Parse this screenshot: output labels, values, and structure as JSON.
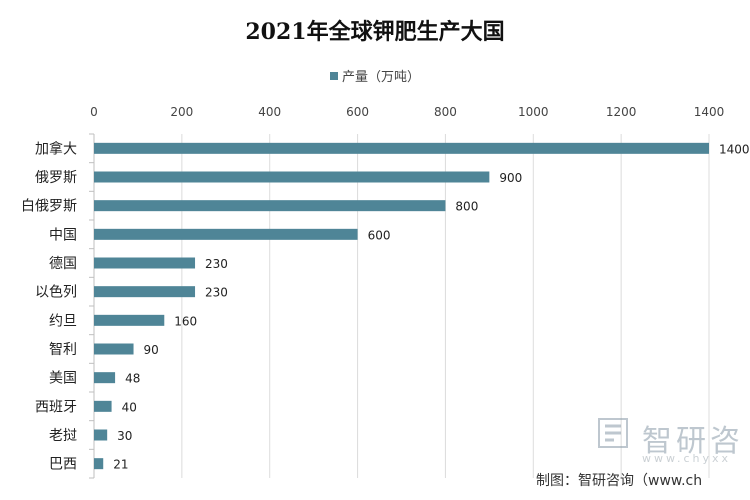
{
  "chart_data": {
    "type": "bar",
    "orientation": "horizontal",
    "title": "2021年全球钾肥生产大国",
    "categories": [
      "加拿大",
      "俄罗斯",
      "白俄罗斯",
      "中国",
      "德国",
      "以色列",
      "约旦",
      "智利",
      "美国",
      "西班牙",
      "老挝",
      "巴西"
    ],
    "series": [
      {
        "name": "产量（万吨）",
        "values": [
          1400,
          900,
          800,
          600,
          230,
          230,
          160,
          90,
          48,
          40,
          30,
          21
        ]
      }
    ],
    "xlim": [
      0,
      1400
    ],
    "x_ticks": [
      0,
      200,
      400,
      600,
      800,
      1000,
      1200,
      1400
    ],
    "grid": true,
    "legend_position": "top",
    "axis_position": "top",
    "bar_color": "#4f8597",
    "data_labels": true
  },
  "watermark": {
    "text": "智研咨",
    "url": "www.chyxx"
  },
  "source_note": "制图：智研咨询（www.ch"
}
